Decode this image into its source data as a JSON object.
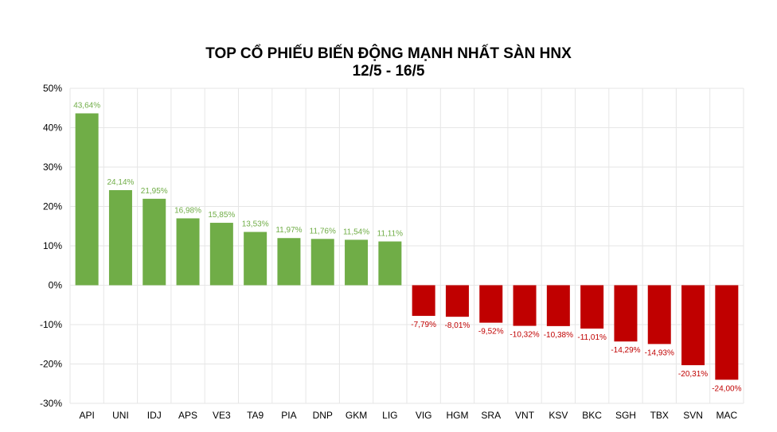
{
  "colors": {
    "positive": "#70ad47",
    "negative": "#c00000",
    "grid": "#e6e6e6",
    "text": "#000000"
  },
  "chart_data": {
    "type": "bar",
    "title": "TOP CỔ PHIẾU BIẾN ĐỘNG MẠNH NHẤT SÀN HNX",
    "subtitle": "12/5 - 16/5",
    "xlabel": "",
    "ylabel": "",
    "ylim": [
      -30,
      50
    ],
    "yticks": [
      50,
      40,
      30,
      20,
      10,
      0,
      -10,
      -20,
      -30
    ],
    "ytick_labels": [
      "50%",
      "40%",
      "30%",
      "20%",
      "10%",
      "0%",
      "-10%",
      "-20%",
      "-30%"
    ],
    "grid": true,
    "legend": "none",
    "categories": [
      "API",
      "UNI",
      "IDJ",
      "APS",
      "VE3",
      "TA9",
      "PIA",
      "DNP",
      "GKM",
      "LIG",
      "VIG",
      "HGM",
      "SRA",
      "VNT",
      "KSV",
      "BKC",
      "SGH",
      "TBX",
      "SVN",
      "MAC"
    ],
    "values": [
      43.64,
      24.14,
      21.95,
      16.98,
      15.85,
      13.53,
      11.97,
      11.76,
      11.54,
      11.11,
      -7.79,
      -8.01,
      -9.52,
      -10.32,
      -10.38,
      -11.01,
      -14.29,
      -14.93,
      -20.31,
      -24.0
    ],
    "value_labels": [
      "43,64%",
      "24,14%",
      "21,95%",
      "16,98%",
      "15,85%",
      "13,53%",
      "11,97%",
      "11,76%",
      "11,54%",
      "11,11%",
      "-7,79%",
      "-8,01%",
      "-9,52%",
      "-10,32%",
      "-10,38%",
      "-11,01%",
      "-14,29%",
      "-14,93%",
      "-20,31%",
      "-24,00%"
    ]
  }
}
